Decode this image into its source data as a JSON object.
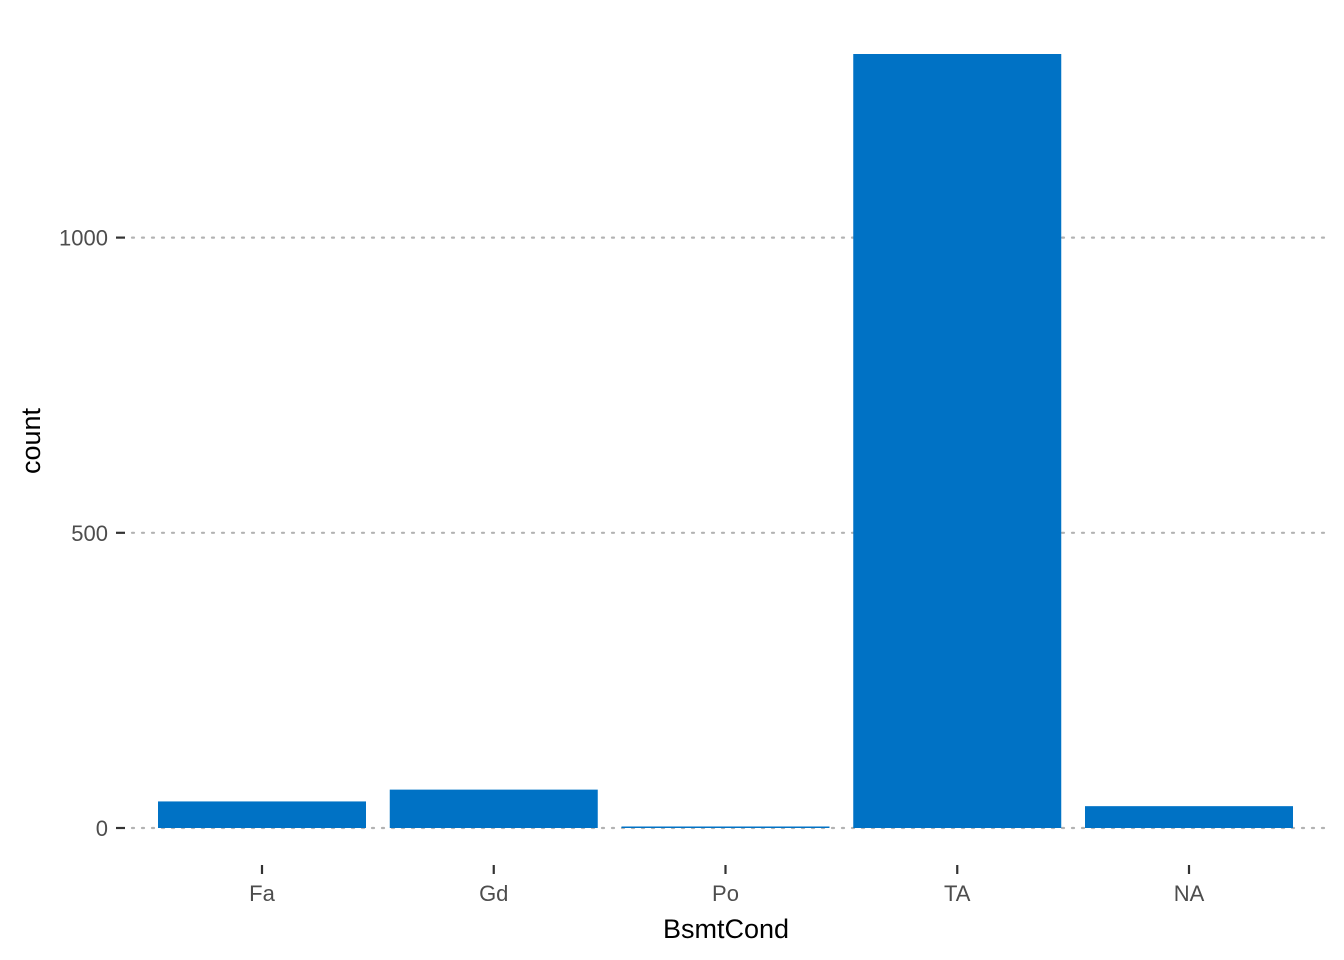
{
  "chart_data": {
    "type": "bar",
    "categories": [
      "Fa",
      "Gd",
      "Po",
      "TA",
      "NA"
    ],
    "values": [
      45,
      65,
      2,
      1311,
      37
    ],
    "xlabel": "BsmtCond",
    "ylabel": "count",
    "ylim": [
      0,
      1311
    ],
    "yticks": [
      0,
      500,
      1000
    ],
    "ytick_labels": [
      "0",
      "500",
      "1000"
    ],
    "grid": "horizontal-dotted",
    "legend": "none",
    "bar_color": "#0072c5"
  }
}
